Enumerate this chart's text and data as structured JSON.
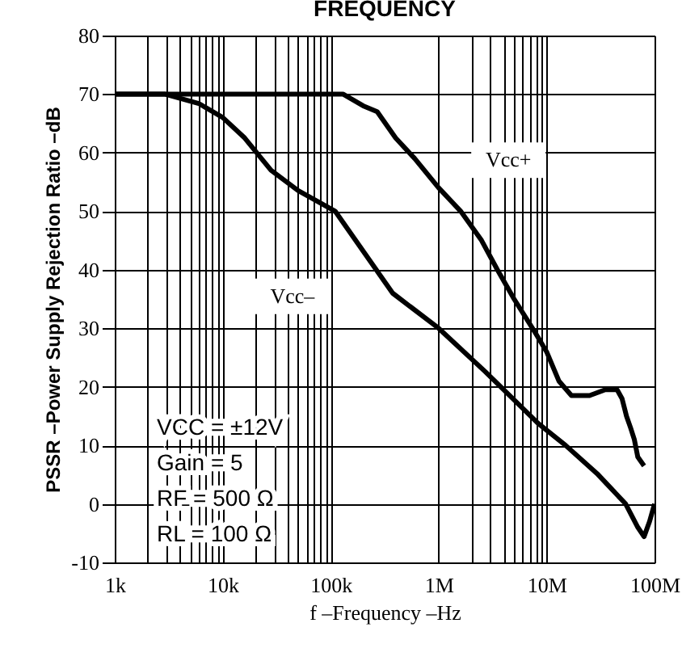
{
  "chart_data": {
    "type": "line",
    "title": "FREQUENCY",
    "xlabel": "f –Frequency –Hz",
    "ylabel": "PSSR –Power Supply Rejection Ratio –dB",
    "log": "x",
    "grid": true,
    "marker": "none",
    "line_style": "solid",
    "xlim": [
      1000,
      100000000
    ],
    "ylim": [
      -10,
      80
    ],
    "xticks": [
      {
        "value": 1000,
        "label": "1k"
      },
      {
        "value": 2000,
        "label": null
      },
      {
        "value": 3000,
        "label": null
      },
      {
        "value": 4000,
        "label": null
      },
      {
        "value": 5000,
        "label": null
      },
      {
        "value": 6000,
        "label": null
      },
      {
        "value": 7000,
        "label": null
      },
      {
        "value": 8000,
        "label": null
      },
      {
        "value": 9000,
        "label": null
      },
      {
        "value": 10000,
        "label": "10k"
      },
      {
        "value": 20000,
        "label": null
      },
      {
        "value": 30000,
        "label": null
      },
      {
        "value": 40000,
        "label": null
      },
      {
        "value": 50000,
        "label": null
      },
      {
        "value": 60000,
        "label": null
      },
      {
        "value": 70000,
        "label": null
      },
      {
        "value": 80000,
        "label": null
      },
      {
        "value": 90000,
        "label": null
      },
      {
        "value": 100000,
        "label": "100k"
      },
      {
        "value": 1000000,
        "label": "1M"
      },
      {
        "value": 2000000,
        "label": null
      },
      {
        "value": 3000000,
        "label": null
      },
      {
        "value": 4000000,
        "label": null
      },
      {
        "value": 5000000,
        "label": null
      },
      {
        "value": 6000000,
        "label": null
      },
      {
        "value": 7000000,
        "label": null
      },
      {
        "value": 8000000,
        "label": null
      },
      {
        "value": 9000000,
        "label": null
      },
      {
        "value": 10000000,
        "label": "10M"
      },
      {
        "value": 100000000,
        "label": "100M"
      }
    ],
    "yticks": [
      -10,
      0,
      10,
      20,
      30,
      40,
      50,
      60,
      70,
      80
    ],
    "series": [
      {
        "name": "Vcc+",
        "color": "#000000",
        "x": [
          1000,
          130000,
          200000,
          270000,
          400000,
          600000,
          1000000,
          1600000,
          2500000,
          3500000,
          5000000,
          8000000,
          10000000,
          13000000,
          17000000,
          25000000,
          35000000,
          45000000,
          50000000,
          55000000,
          60000000,
          65000000,
          70000000,
          80000000
        ],
        "values": [
          70,
          70,
          68,
          67,
          62.5,
          59,
          54,
          50,
          45,
          40,
          35,
          29,
          26,
          21,
          18.5,
          18.5,
          19.5,
          19.5,
          18,
          15,
          13,
          11,
          8,
          6.5
        ]
      },
      {
        "name": "Vcc–",
        "color": "#000000",
        "x": [
          1000,
          2900,
          6000,
          10000,
          16000,
          28000,
          50000,
          110000,
          375000,
          1000000,
          2700000,
          8300000,
          15000000,
          30000000,
          54000000,
          70000000,
          80000000,
          90000000,
          100000000
        ],
        "values": [
          70,
          70,
          68.4,
          66,
          62.5,
          57,
          53.5,
          50,
          36,
          30,
          22.6,
          13.8,
          10,
          5,
          0,
          -4,
          -5.6,
          -3,
          0
        ]
      }
    ],
    "annotations": [
      "VCC = ±12V",
      "Gain = 5",
      "RF = 500 Ω",
      "RL =  100 Ω"
    ]
  }
}
